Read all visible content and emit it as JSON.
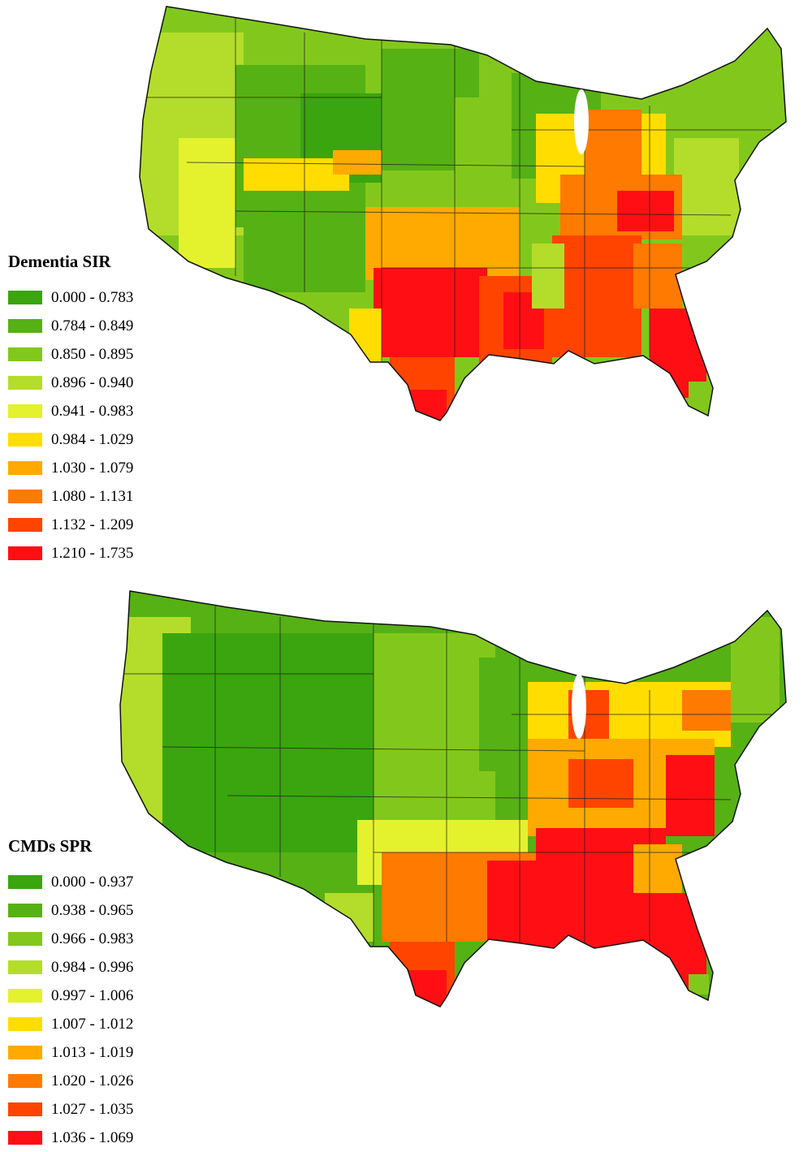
{
  "maps": [
    {
      "id": "dementia",
      "legend": {
        "title": "Dementia SIR",
        "classes": [
          {
            "label": "0.000 - 0.783",
            "color": "#3aa50f"
          },
          {
            "label": "0.784 - 0.849",
            "color": "#56b114"
          },
          {
            "label": "0.850 - 0.895",
            "color": "#82c81c"
          },
          {
            "label": "0.896 - 0.940",
            "color": "#b3dd2a"
          },
          {
            "label": "0.941 - 0.983",
            "color": "#e3f22c"
          },
          {
            "label": "0.984 - 1.029",
            "color": "#ffdd00"
          },
          {
            "label": "1.030 - 1.079",
            "color": "#ffaa00"
          },
          {
            "label": "1.080 - 1.131",
            "color": "#ff7a00"
          },
          {
            "label": "1.132 - 1.209",
            "color": "#ff4400"
          },
          {
            "label": "1.210 - 1.735",
            "color": "#ff0f14"
          }
        ]
      }
    },
    {
      "id": "cmds",
      "legend": {
        "title": "CMDs SPR",
        "classes": [
          {
            "label": "0.000 - 0.937",
            "color": "#3aa50f"
          },
          {
            "label": "0.938 - 0.965",
            "color": "#56b114"
          },
          {
            "label": "0.966 - 0.983",
            "color": "#82c81c"
          },
          {
            "label": "0.984 - 0.996",
            "color": "#b3dd2a"
          },
          {
            "label": "0.997 - 1.006",
            "color": "#e3f22c"
          },
          {
            "label": "1.007 - 1.012",
            "color": "#ffdd00"
          },
          {
            "label": "1.013 - 1.019",
            "color": "#ffaa00"
          },
          {
            "label": "1.020 - 1.026",
            "color": "#ff7a00"
          },
          {
            "label": "1.027 - 1.035",
            "color": "#ff4400"
          },
          {
            "label": "1.036 - 1.069",
            "color": "#ff0f14"
          }
        ]
      }
    }
  ]
}
